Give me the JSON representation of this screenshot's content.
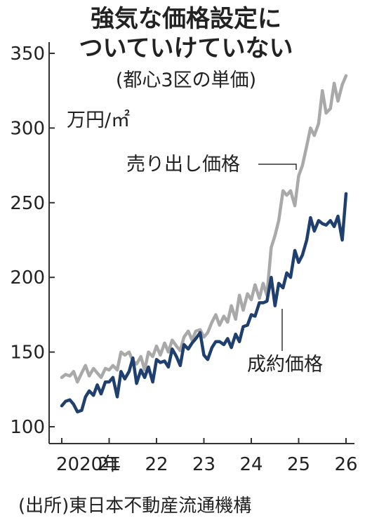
{
  "header": {
    "title_line1": "強気な価格設定に",
    "title_line2": "ついていけていない",
    "subtitle": "(都心3区の単価)"
  },
  "source": "(出所)東日本不動産流通機構",
  "colors": {
    "asking": "#a9a9a9",
    "contract": "#1f3f6e",
    "axis": "#333333"
  },
  "chart_data": {
    "type": "line",
    "unit_label": "万円/㎡",
    "ylim": [
      100,
      350
    ],
    "yticks": [
      100,
      150,
      200,
      250,
      300,
      350
    ],
    "xlim": [
      2020.0,
      2026.0
    ],
    "xticks": [
      {
        "x": 2020,
        "label": "2020年"
      },
      {
        "x": 2021,
        "label": "21"
      },
      {
        "x": 2022,
        "label": "22"
      },
      {
        "x": 2023,
        "label": "23"
      },
      {
        "x": 2024,
        "label": "24"
      },
      {
        "x": 2025,
        "label": "25"
      },
      {
        "x": 2026,
        "label": "26"
      }
    ],
    "grid": false,
    "series": [
      {
        "name": "売り出し価格",
        "color": "#a9a9a9",
        "points": [
          [
            2020.0,
            133
          ],
          [
            2020.08,
            135
          ],
          [
            2020.17,
            134
          ],
          [
            2020.25,
            137
          ],
          [
            2020.33,
            130
          ],
          [
            2020.42,
            136
          ],
          [
            2020.5,
            141
          ],
          [
            2020.58,
            134
          ],
          [
            2020.67,
            139
          ],
          [
            2020.75,
            136
          ],
          [
            2020.83,
            133
          ],
          [
            2020.92,
            139
          ],
          [
            2021.0,
            138
          ],
          [
            2021.08,
            141
          ],
          [
            2021.17,
            138
          ],
          [
            2021.25,
            150
          ],
          [
            2021.33,
            148
          ],
          [
            2021.42,
            150
          ],
          [
            2021.5,
            144
          ],
          [
            2021.58,
            142
          ],
          [
            2021.67,
            147
          ],
          [
            2021.75,
            138
          ],
          [
            2021.83,
            150
          ],
          [
            2021.92,
            147
          ],
          [
            2022.0,
            154
          ],
          [
            2022.08,
            148
          ],
          [
            2022.17,
            156
          ],
          [
            2022.25,
            150
          ],
          [
            2022.33,
            158
          ],
          [
            2022.42,
            154
          ],
          [
            2022.5,
            151
          ],
          [
            2022.58,
            160
          ],
          [
            2022.67,
            164
          ],
          [
            2022.75,
            158
          ],
          [
            2022.83,
            164
          ],
          [
            2022.92,
            165
          ],
          [
            2023.0,
            160
          ],
          [
            2023.08,
            163
          ],
          [
            2023.17,
            170
          ],
          [
            2023.25,
            175
          ],
          [
            2023.33,
            168
          ],
          [
            2023.42,
            174
          ],
          [
            2023.5,
            170
          ],
          [
            2023.58,
            181
          ],
          [
            2023.67,
            172
          ],
          [
            2023.75,
            188
          ],
          [
            2023.83,
            178
          ],
          [
            2023.92,
            189
          ],
          [
            2024.0,
            185
          ],
          [
            2024.08,
            195
          ],
          [
            2024.17,
            186
          ],
          [
            2024.25,
            196
          ],
          [
            2024.33,
            188
          ],
          [
            2024.42,
            220
          ],
          [
            2024.5,
            228
          ],
          [
            2024.58,
            238
          ],
          [
            2024.67,
            258
          ],
          [
            2024.75,
            255
          ],
          [
            2024.83,
            258
          ],
          [
            2024.92,
            248
          ],
          [
            2025.0,
            268
          ],
          [
            2025.08,
            275
          ],
          [
            2025.17,
            288
          ],
          [
            2025.25,
            300
          ],
          [
            2025.33,
            295
          ],
          [
            2025.42,
            303
          ],
          [
            2025.5,
            325
          ],
          [
            2025.58,
            310
          ],
          [
            2025.67,
            313
          ],
          [
            2025.75,
            330
          ],
          [
            2025.83,
            318
          ],
          [
            2025.92,
            329
          ],
          [
            2026.0,
            335
          ]
        ]
      },
      {
        "name": "成約価格",
        "color": "#1f3f6e",
        "points": [
          [
            2020.0,
            114
          ],
          [
            2020.08,
            117
          ],
          [
            2020.17,
            118
          ],
          [
            2020.25,
            115
          ],
          [
            2020.33,
            110
          ],
          [
            2020.42,
            111
          ],
          [
            2020.5,
            120
          ],
          [
            2020.58,
            124
          ],
          [
            2020.67,
            121
          ],
          [
            2020.75,
            128
          ],
          [
            2020.83,
            122
          ],
          [
            2020.92,
            130
          ],
          [
            2021.0,
            130
          ],
          [
            2021.08,
            133
          ],
          [
            2021.17,
            120
          ],
          [
            2021.25,
            137
          ],
          [
            2021.33,
            132
          ],
          [
            2021.42,
            137
          ],
          [
            2021.5,
            146
          ],
          [
            2021.58,
            129
          ],
          [
            2021.67,
            138
          ],
          [
            2021.75,
            133
          ],
          [
            2021.83,
            140
          ],
          [
            2021.92,
            130
          ],
          [
            2022.0,
            145
          ],
          [
            2022.08,
            143
          ],
          [
            2022.17,
            144
          ],
          [
            2022.25,
            140
          ],
          [
            2022.33,
            152
          ],
          [
            2022.42,
            147
          ],
          [
            2022.5,
            141
          ],
          [
            2022.58,
            155
          ],
          [
            2022.67,
            152
          ],
          [
            2022.75,
            156
          ],
          [
            2022.83,
            159
          ],
          [
            2022.92,
            163
          ],
          [
            2023.0,
            148
          ],
          [
            2023.08,
            145
          ],
          [
            2023.17,
            153
          ],
          [
            2023.25,
            157
          ],
          [
            2023.33,
            157
          ],
          [
            2023.42,
            155
          ],
          [
            2023.5,
            159
          ],
          [
            2023.58,
            153
          ],
          [
            2023.67,
            162
          ],
          [
            2023.75,
            157
          ],
          [
            2023.83,
            167
          ],
          [
            2023.92,
            168
          ],
          [
            2024.0,
            175
          ],
          [
            2024.08,
            174
          ],
          [
            2024.17,
            183
          ],
          [
            2024.25,
            183
          ],
          [
            2024.33,
            184
          ],
          [
            2024.42,
            200
          ],
          [
            2024.5,
            181
          ],
          [
            2024.58,
            196
          ],
          [
            2024.67,
            193
          ],
          [
            2024.75,
            203
          ],
          [
            2024.83,
            200
          ],
          [
            2024.92,
            218
          ],
          [
            2025.0,
            210
          ],
          [
            2025.08,
            215
          ],
          [
            2025.17,
            225
          ],
          [
            2025.25,
            240
          ],
          [
            2025.33,
            231
          ],
          [
            2025.42,
            238
          ],
          [
            2025.5,
            236
          ],
          [
            2025.58,
            235
          ],
          [
            2025.67,
            238
          ],
          [
            2025.75,
            234
          ],
          [
            2025.83,
            241
          ],
          [
            2025.92,
            225
          ],
          [
            2026.0,
            256
          ]
        ]
      }
    ]
  }
}
